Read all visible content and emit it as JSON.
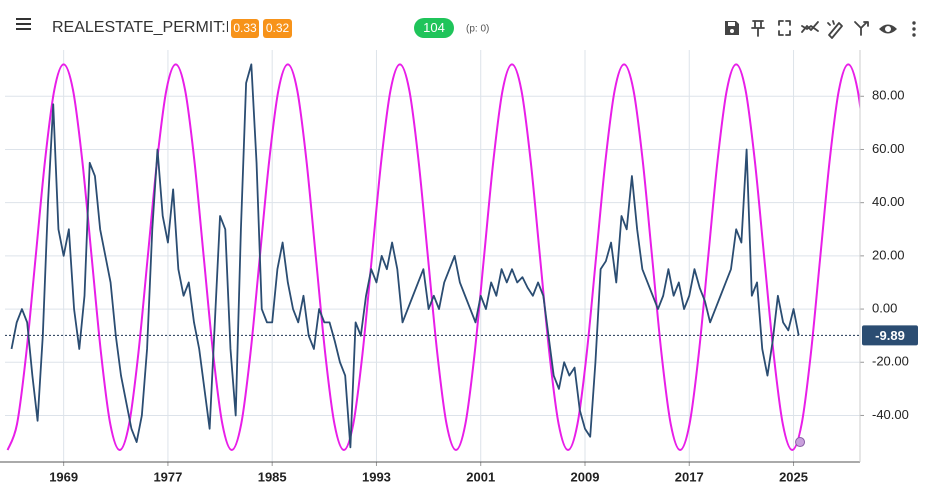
{
  "header": {
    "symbol": "REALESTATE_PERMIT:LA",
    "badges": [
      "0.33",
      "0.32"
    ],
    "count": "104",
    "note": "(p: 0)"
  },
  "chart_data": {
    "type": "line",
    "xlim": [
      1964.5,
      2030.1
    ],
    "ylim": [
      -57.5,
      97.4
    ],
    "xticks": [
      1969,
      1977,
      1985,
      1993,
      2001,
      2009,
      2017,
      2025
    ],
    "yticks": [
      {
        "value": 80,
        "label": "80.00"
      },
      {
        "value": 60,
        "label": "60.00"
      },
      {
        "value": 40,
        "label": "40.00"
      },
      {
        "value": 20,
        "label": "20.00"
      },
      {
        "value": 0,
        "label": "0.00"
      },
      {
        "value": -20,
        "label": "-20.00"
      },
      {
        "value": -40,
        "label": "-40.00"
      }
    ],
    "grid": true,
    "series": [
      {
        "color": "#2b4d72",
        "smooth": false,
        "x": [
          1965.0,
          1965.4,
          1965.8,
          1966.2,
          1966.6,
          1967.0,
          1967.4,
          1967.8,
          1968.2,
          1968.6,
          1969.0,
          1969.4,
          1969.8,
          1970.2,
          1970.6,
          1971.0,
          1971.4,
          1971.8,
          1972.2,
          1972.6,
          1973.0,
          1973.4,
          1973.8,
          1974.2,
          1974.6,
          1975.0,
          1975.4,
          1975.8,
          1976.2,
          1976.6,
          1977.0,
          1977.4,
          1977.8,
          1978.2,
          1978.6,
          1979.0,
          1979.4,
          1979.8,
          1980.2,
          1980.6,
          1981.0,
          1981.4,
          1981.8,
          1982.2,
          1982.6,
          1983.0,
          1983.4,
          1983.8,
          1984.2,
          1984.6,
          1985.0,
          1985.4,
          1985.8,
          1986.2,
          1986.6,
          1987.0,
          1987.4,
          1987.8,
          1988.2,
          1988.6,
          1989.0,
          1989.4,
          1989.8,
          1990.2,
          1990.6,
          1991.0,
          1991.4,
          1991.8,
          1992.2,
          1992.6,
          1993.0,
          1993.4,
          1993.8,
          1994.2,
          1994.6,
          1995.0,
          1995.4,
          1995.8,
          1996.2,
          1996.6,
          1997.0,
          1997.4,
          1997.8,
          1998.2,
          1998.6,
          1999.0,
          1999.4,
          1999.8,
          2000.2,
          2000.6,
          2001.0,
          2001.4,
          2001.8,
          2002.2,
          2002.6,
          2003.0,
          2003.4,
          2003.8,
          2004.2,
          2004.6,
          2005.0,
          2005.4,
          2005.8,
          2006.2,
          2006.6,
          2007.0,
          2007.4,
          2007.8,
          2008.2,
          2008.6,
          2009.0,
          2009.4,
          2009.8,
          2010.2,
          2010.6,
          2011.0,
          2011.4,
          2011.8,
          2012.2,
          2012.6,
          2013.0,
          2013.4,
          2013.8,
          2014.2,
          2014.6,
          2015.0,
          2015.4,
          2015.8,
          2016.2,
          2016.6,
          2017.0,
          2017.4,
          2017.8,
          2018.2,
          2018.6,
          2019.0,
          2019.4,
          2019.8,
          2020.2,
          2020.6,
          2021.0,
          2021.4,
          2021.8,
          2022.2,
          2022.6,
          2023.0,
          2023.4,
          2023.8,
          2024.2,
          2024.6,
          2025.0,
          2025.4
        ],
        "values": [
          -15,
          -5,
          0,
          -5,
          -25,
          -42,
          -10,
          40,
          77,
          30,
          20,
          30,
          0,
          -15,
          5,
          55,
          50,
          30,
          20,
          10,
          -10,
          -25,
          -35,
          -45,
          -50,
          -40,
          -15,
          30,
          60,
          35,
          25,
          45,
          15,
          5,
          10,
          -5,
          -15,
          -30,
          -45,
          -5,
          35,
          30,
          -15,
          -40,
          30,
          85,
          92,
          55,
          0,
          -5,
          -5,
          15,
          25,
          10,
          0,
          -5,
          5,
          -10,
          -15,
          0,
          -5,
          -5,
          -12,
          -20,
          -25,
          -52,
          -5,
          -10,
          5,
          15,
          10,
          20,
          15,
          25,
          15,
          -5,
          0,
          5,
          10,
          15,
          0,
          5,
          0,
          10,
          15,
          20,
          10,
          5,
          0,
          -5,
          5,
          0,
          10,
          5,
          15,
          10,
          15,
          10,
          12,
          8,
          5,
          10,
          5,
          -10,
          -25,
          -30,
          -20,
          -25,
          -22,
          -38,
          -45,
          -48,
          -20,
          15,
          18,
          25,
          10,
          35,
          30,
          50,
          30,
          15,
          10,
          5,
          0,
          5,
          15,
          5,
          10,
          0,
          5,
          15,
          8,
          3,
          -5,
          0,
          5,
          10,
          15,
          30,
          25,
          60,
          5,
          10,
          -15,
          -25,
          -12,
          5,
          -5,
          -8,
          0,
          -9.89
        ]
      },
      {
        "color": "#e81ee8",
        "smooth": true,
        "x": [
          1964.7,
          1965.42,
          1966.13,
          1966.85,
          1967.57,
          1968.28,
          1969.0,
          1969.72,
          1970.43,
          1971.15,
          1971.87,
          1972.58,
          1973.3,
          1974.02,
          1974.73,
          1975.45,
          1976.17,
          1976.88,
          1977.6,
          1978.32,
          1979.03,
          1979.75,
          1980.47,
          1981.18,
          1981.9,
          1982.62,
          1983.33,
          1984.05,
          1984.77,
          1985.48,
          1986.2,
          1986.92,
          1987.63,
          1988.35,
          1989.07,
          1989.78,
          1990.5,
          1991.22,
          1991.93,
          1992.65,
          1993.37,
          1994.08,
          1994.8,
          1995.52,
          1996.23,
          1996.95,
          1997.67,
          1998.38,
          1999.1,
          1999.82,
          2000.53,
          2001.25,
          2001.97,
          2002.68,
          2003.4,
          2004.12,
          2004.83,
          2005.55,
          2006.27,
          2006.98,
          2007.7,
          2008.42,
          2009.13,
          2009.85,
          2010.57,
          2011.28,
          2012.0,
          2012.72,
          2013.43,
          2014.15,
          2014.87,
          2015.58,
          2016.3,
          2017.02,
          2017.73,
          2018.45,
          2019.17,
          2019.88,
          2020.6,
          2021.32,
          2022.03,
          2022.75,
          2023.47,
          2024.18,
          2024.9,
          2025.62,
          2026.33,
          2027.05,
          2027.77,
          2028.48,
          2029.2,
          2029.92,
          2030.63
        ],
        "values": [
          -53,
          -43.3,
          -16.75,
          19.5,
          55.75,
          82.3,
          92,
          82.3,
          55.75,
          19.5,
          -16.75,
          -43.3,
          -53,
          -43.3,
          -16.75,
          19.5,
          55.75,
          82.3,
          92,
          82.3,
          55.75,
          19.5,
          -16.75,
          -43.3,
          -53,
          -43.3,
          -16.75,
          19.5,
          55.75,
          82.3,
          92,
          82.3,
          55.75,
          19.5,
          -16.75,
          -43.3,
          -53,
          -43.3,
          -16.75,
          19.5,
          55.75,
          82.3,
          92,
          82.3,
          55.75,
          19.5,
          -16.75,
          -43.3,
          -53,
          -43.3,
          -16.75,
          19.5,
          55.75,
          82.3,
          92,
          82.3,
          55.75,
          19.5,
          -16.75,
          -43.3,
          -53,
          -43.3,
          -16.75,
          19.5,
          55.75,
          82.3,
          92,
          82.3,
          55.75,
          19.5,
          -16.75,
          -43.3,
          -53,
          -43.3,
          -16.75,
          19.5,
          55.75,
          82.3,
          92,
          82.3,
          55.75,
          19.5,
          -16.75,
          -43.3,
          -53,
          -43.3,
          -16.75,
          19.5,
          55.75,
          82.3,
          92,
          82.3,
          55.75
        ]
      }
    ],
    "current_point": {
      "x": 2025.5,
      "y": -50,
      "color": "#c9a0dc"
    },
    "last_value_color": "#2b4d72"
  }
}
